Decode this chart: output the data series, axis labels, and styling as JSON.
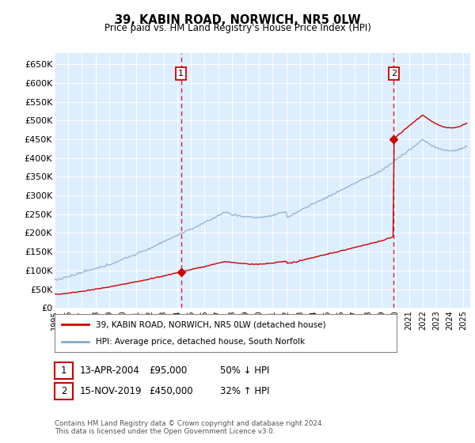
{
  "title": "39, KABIN ROAD, NORWICH, NR5 0LW",
  "subtitle": "Price paid vs. HM Land Registry's House Price Index (HPI)",
  "ylabel_ticks": [
    "£0",
    "£50K",
    "£100K",
    "£150K",
    "£200K",
    "£250K",
    "£300K",
    "£350K",
    "£400K",
    "£450K",
    "£500K",
    "£550K",
    "£600K",
    "£650K"
  ],
  "ytick_values": [
    0,
    50000,
    100000,
    150000,
    200000,
    250000,
    300000,
    350000,
    400000,
    450000,
    500000,
    550000,
    600000,
    650000
  ],
  "ylim": [
    0,
    680000
  ],
  "xlim_start": 1995.0,
  "xlim_end": 2025.5,
  "plot_bg_color": "#ddeeff",
  "grid_color": "#ffffff",
  "transaction1": {
    "date_x": 2004.28,
    "price": 95000,
    "label": "1"
  },
  "transaction2": {
    "date_x": 2019.88,
    "price": 450000,
    "label": "2"
  },
  "legend_line1": "39, KABIN ROAD, NORWICH, NR5 0LW (detached house)",
  "legend_line2": "HPI: Average price, detached house, South Norfolk",
  "table_row1_num": "1",
  "table_row1_date": "13-APR-2004",
  "table_row1_price": "£95,000",
  "table_row1_hpi": "50% ↓ HPI",
  "table_row2_num": "2",
  "table_row2_date": "15-NOV-2019",
  "table_row2_price": "£450,000",
  "table_row2_hpi": "32% ↑ HPI",
  "footnote": "Contains HM Land Registry data © Crown copyright and database right 2024.\nThis data is licensed under the Open Government Licence v3.0.",
  "red_color": "#cc0000",
  "blue_color": "#88aacc",
  "box_color": "#cc0000"
}
